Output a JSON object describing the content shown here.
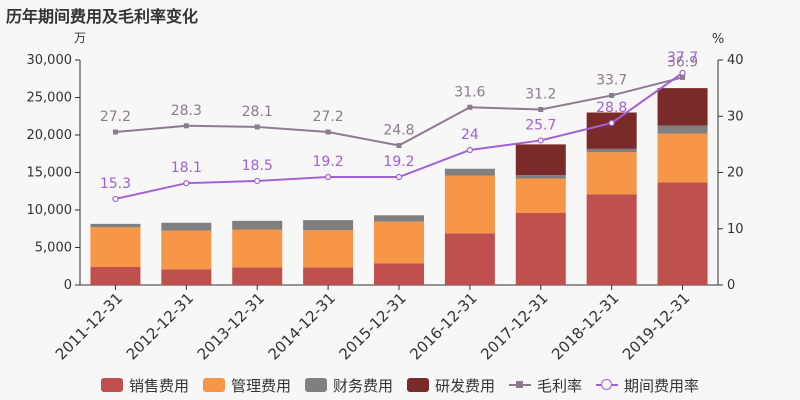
{
  "title": "历年期间费用及毛利率变化",
  "chart_data": {
    "type": "bar",
    "stacked": true,
    "categories": [
      "2011-12-31",
      "2012-12-31",
      "2013-12-31",
      "2014-12-31",
      "2015-12-31",
      "2016-12-31",
      "2017-12-31",
      "2018-12-31",
      "2019-12-31"
    ],
    "y_left": {
      "unit": "万",
      "ylim": [
        0,
        30000
      ],
      "ticks": [
        "0",
        "5,000",
        "10,000",
        "15,000",
        "20,000",
        "25,000",
        "30,000"
      ]
    },
    "y_right": {
      "unit": "%",
      "ylim": [
        0,
        40
      ],
      "ticks": [
        "0",
        "10",
        "20",
        "30",
        "40"
      ]
    },
    "series": [
      {
        "name": "销售费用",
        "kind": "bar",
        "color": "#c0504d",
        "values": [
          2400,
          2100,
          2350,
          2350,
          2900,
          6900,
          9600,
          12100,
          13700
        ]
      },
      {
        "name": "管理费用",
        "kind": "bar",
        "color": "#f79646",
        "values": [
          5300,
          5150,
          5050,
          4950,
          5550,
          7700,
          4600,
          5600,
          6500
        ]
      },
      {
        "name": "财务费用",
        "kind": "bar",
        "color": "#7f7f7f",
        "values": [
          450,
          1050,
          1150,
          1350,
          850,
          900,
          450,
          450,
          1050
        ]
      },
      {
        "name": "研发费用",
        "kind": "bar",
        "color": "#7b2a2a",
        "values": [
          0,
          0,
          0,
          0,
          0,
          0,
          4100,
          4850,
          5000
        ]
      },
      {
        "name": "毛利率",
        "kind": "line",
        "axis": "right",
        "marker": "square",
        "color": "#8e7a8e",
        "values": [
          27.2,
          28.3,
          28.1,
          27.2,
          24.8,
          31.6,
          31.2,
          33.7,
          36.9
        ],
        "labels": [
          "27.2",
          "28.3",
          "28.1",
          "27.2",
          "24.8",
          "31.6",
          "31.2",
          "33.7",
          "36.9"
        ]
      },
      {
        "name": "期间费用率",
        "kind": "line",
        "axis": "right",
        "marker": "circle",
        "color": "#a35fd6",
        "values": [
          15.3,
          18.1,
          18.5,
          19.2,
          19.2,
          24,
          25.7,
          28.8,
          37.7
        ],
        "labels": [
          "15.3",
          "18.1",
          "18.5",
          "19.2",
          "19.2",
          "24",
          "25.7",
          "28.8",
          "37.7"
        ]
      }
    ],
    "grid": false,
    "legend": "bottom"
  }
}
